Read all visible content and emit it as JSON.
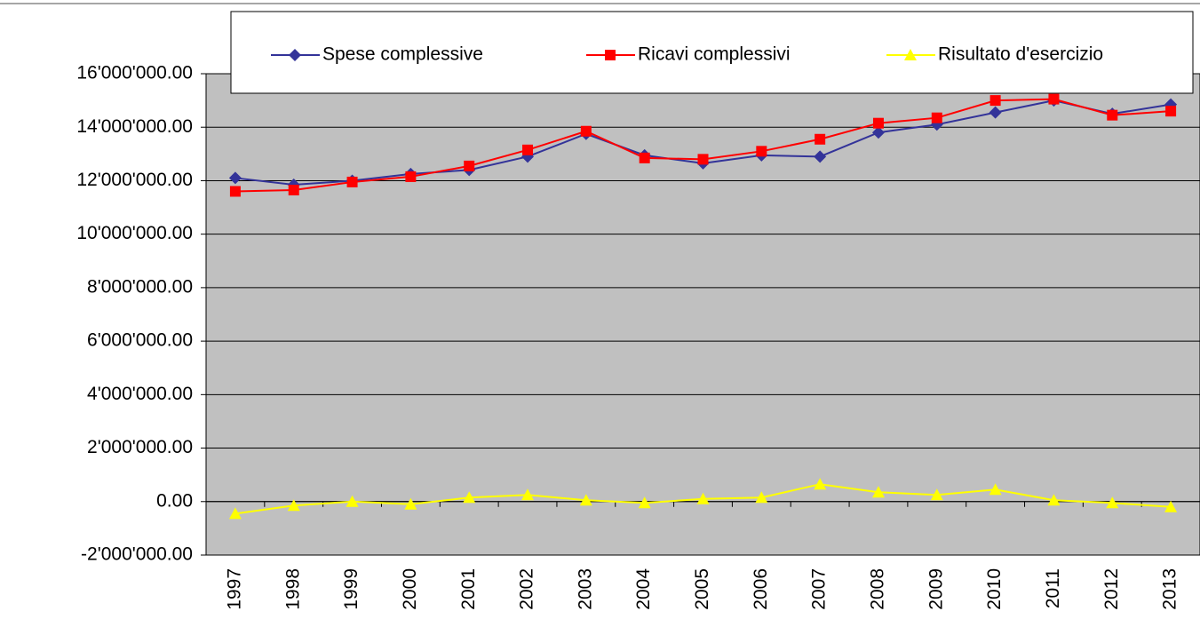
{
  "chart_data": {
    "type": "line",
    "categories": [
      "1997",
      "1998",
      "1999",
      "2000",
      "2001",
      "2002",
      "2003",
      "2004",
      "2005",
      "2006",
      "2007",
      "2008",
      "2009",
      "2010",
      "2011",
      "2012",
      "2013"
    ],
    "series": [
      {
        "name": "Spese complessive",
        "color": "#333399",
        "marker": "diamond",
        "values": [
          12100000,
          11850000,
          12000000,
          12250000,
          12400000,
          12900000,
          13750000,
          12950000,
          12650000,
          12950000,
          12900000,
          13800000,
          14100000,
          14550000,
          15000000,
          14500000,
          14850000
        ]
      },
      {
        "name": "Ricavi complessivi",
        "color": "#ff0000",
        "marker": "square",
        "values": [
          11600000,
          11650000,
          11950000,
          12150000,
          12550000,
          13150000,
          13850000,
          12850000,
          12800000,
          13100000,
          13550000,
          14150000,
          14350000,
          15000000,
          15050000,
          14450000,
          14600000
        ]
      },
      {
        "name": "Risultato d'esercizio",
        "color": "#ffff00",
        "marker": "triangle",
        "values": [
          -450000,
          -150000,
          0,
          -100000,
          150000,
          250000,
          50000,
          -50000,
          100000,
          150000,
          650000,
          350000,
          250000,
          450000,
          50000,
          -50000,
          -200000
        ]
      }
    ],
    "ylim": [
      -2000000,
      16000000
    ],
    "yticks": [
      {
        "value": -2000000,
        "label": "-2'000'000.00"
      },
      {
        "value": 0,
        "label": "0.00"
      },
      {
        "value": 2000000,
        "label": "2'000'000.00"
      },
      {
        "value": 4000000,
        "label": "4'000'000.00"
      },
      {
        "value": 6000000,
        "label": "6'000'000.00"
      },
      {
        "value": 8000000,
        "label": "8'000'000.00"
      },
      {
        "value": 10000000,
        "label": "10'000'000.00"
      },
      {
        "value": 12000000,
        "label": "12'000'000.00"
      },
      {
        "value": 14000000,
        "label": "14'000'000.00"
      },
      {
        "value": 16000000,
        "label": "16'000'000.00"
      }
    ],
    "grid": true,
    "plot_background": "#c0c0c0",
    "legend": "top"
  }
}
